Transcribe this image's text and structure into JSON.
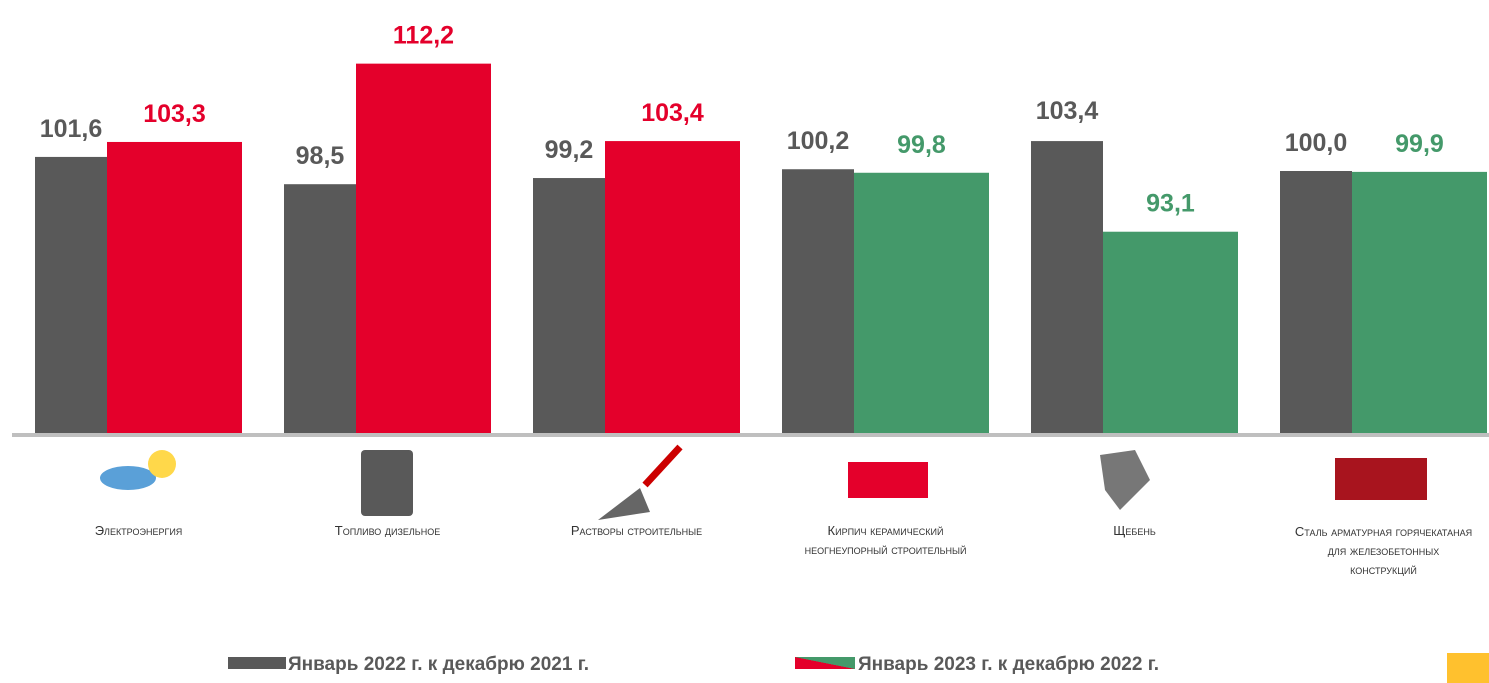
{
  "chart_data": {
    "type": "bar",
    "categories": [
      "Электроэнергия",
      "Топливо дизельное",
      "Растворы строительные",
      "Кирпич керамический неогнеупорный строительный",
      "Щебень",
      "Сталь арматурная горячекатаная для железобетонных конструкций"
    ],
    "series": [
      {
        "name": "Январь 2022 г. к декабрю 2021 г.",
        "color": "#595959",
        "values": [
          101.6,
          98.5,
          99.2,
          100.2,
          103.4,
          100.0
        ],
        "value_labels": [
          "101,6",
          "98,5",
          "99,2",
          "100,2",
          "103,4",
          "100,0"
        ]
      },
      {
        "name": "Январь 2023 г. к декабрю 2022 г.",
        "colors": [
          "#e4002b",
          "#e4002b",
          "#e4002b",
          "#44996a",
          "#44996a",
          "#44996a"
        ],
        "values": [
          103.3,
          112.2,
          103.4,
          99.8,
          93.1,
          99.9
        ],
        "value_labels": [
          "103,3",
          "112,2",
          "103,4",
          "99,8",
          "93,1",
          "99,9"
        ]
      }
    ],
    "ylim": [
      70,
      115
    ]
  }
}
